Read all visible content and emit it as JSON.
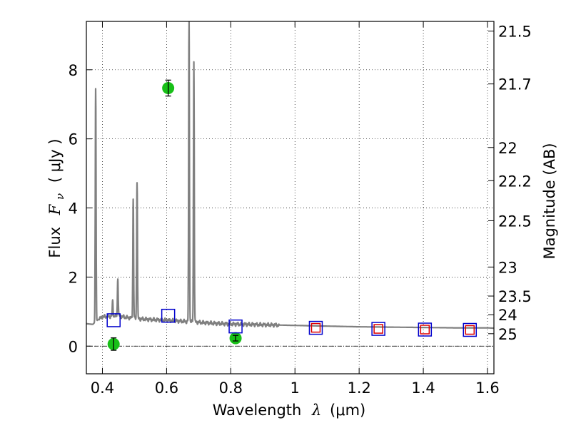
{
  "chart_data": {
    "type": "scatter",
    "title": "",
    "xlabel_text": "Wavelength",
    "xlabel_symbol": "λ",
    "xlabel_unit": "(μm)",
    "ylabel_text": "Flux",
    "ylabel_symbol": "F",
    "ylabel_subscript": "ν",
    "ylabel_unit": "( μJy )",
    "y2label": "Magnitude (AB)",
    "xlim": [
      0.35,
      1.62
    ],
    "ylim": [
      -0.8,
      9.4
    ],
    "grid": true,
    "x_ticks": [
      {
        "value": 0.4,
        "label": "0.4"
      },
      {
        "value": 0.6,
        "label": "0.6"
      },
      {
        "value": 0.8,
        "label": "0.8"
      },
      {
        "value": 1.0,
        "label": "1"
      },
      {
        "value": 1.2,
        "label": "1.2"
      },
      {
        "value": 1.4,
        "label": "1.4"
      },
      {
        "value": 1.6,
        "label": "1.6"
      }
    ],
    "y_ticks": [
      {
        "value": 0,
        "label": "0"
      },
      {
        "value": 2,
        "label": "2"
      },
      {
        "value": 4,
        "label": "4"
      },
      {
        "value": 6,
        "label": "6"
      },
      {
        "value": 8,
        "label": "8"
      }
    ],
    "mag_ticks": [
      {
        "flux": 9.12,
        "label": "21.5"
      },
      {
        "flux": 7.59,
        "label": "21.7"
      },
      {
        "flux": 5.75,
        "label": "22"
      },
      {
        "flux": 4.79,
        "label": "22.2"
      },
      {
        "flux": 3.63,
        "label": "22.5"
      },
      {
        "flux": 2.29,
        "label": "23"
      },
      {
        "flux": 1.45,
        "label": "23.5"
      },
      {
        "flux": 0.91,
        "label": "24"
      },
      {
        "flux": 0.36,
        "label": "25"
      }
    ],
    "sed_model": {
      "name": "model spectrum",
      "color": "#808080",
      "continuum": [
        [
          0.35,
          0.65
        ],
        [
          0.37,
          0.63
        ],
        [
          0.38,
          0.72
        ],
        [
          0.4,
          0.85
        ],
        [
          0.42,
          0.86
        ],
        [
          0.45,
          0.88
        ],
        [
          0.47,
          0.84
        ],
        [
          0.5,
          0.8
        ],
        [
          0.55,
          0.77
        ],
        [
          0.6,
          0.75
        ],
        [
          0.65,
          0.72
        ],
        [
          0.7,
          0.69
        ],
        [
          0.75,
          0.66
        ],
        [
          0.8,
          0.64
        ],
        [
          0.85,
          0.63
        ],
        [
          0.9,
          0.62
        ],
        [
          1.0,
          0.6
        ],
        [
          1.1,
          0.58
        ],
        [
          1.2,
          0.56
        ],
        [
          1.3,
          0.55
        ],
        [
          1.4,
          0.54
        ],
        [
          1.5,
          0.53
        ],
        [
          1.6,
          0.53
        ],
        [
          1.62,
          0.52
        ]
      ],
      "emission_lines": [
        {
          "wavelength": 0.379,
          "peak": 7.45
        },
        {
          "wavelength": 0.432,
          "peak": 1.3
        },
        {
          "wavelength": 0.448,
          "peak": 1.98
        },
        {
          "wavelength": 0.496,
          "peak": 4.25
        },
        {
          "wavelength": 0.508,
          "peak": 4.78
        },
        {
          "wavelength": 0.67,
          "peak": 9.4
        },
        {
          "wavelength": 0.685,
          "peak": 8.25
        }
      ]
    },
    "series": [
      {
        "name": "observed photometry",
        "marker": "circle",
        "color": "#18c018",
        "points": [
          {
            "x": 0.435,
            "y": 0.06,
            "err": 0.18
          },
          {
            "x": 0.605,
            "y": 7.47,
            "err": 0.23
          },
          {
            "x": 0.815,
            "y": 0.23,
            "err": 0.08
          }
        ]
      },
      {
        "name": "model photometry",
        "marker": "square",
        "color": "#0000cc",
        "points": [
          {
            "x": 0.435,
            "y": 0.75
          },
          {
            "x": 0.605,
            "y": 0.88
          },
          {
            "x": 0.815,
            "y": 0.57
          },
          {
            "x": 1.065,
            "y": 0.53
          },
          {
            "x": 1.26,
            "y": 0.5
          },
          {
            "x": 1.405,
            "y": 0.48
          },
          {
            "x": 1.545,
            "y": 0.47
          }
        ]
      },
      {
        "name": "secondary model photometry",
        "marker": "square",
        "color": "#dd0000",
        "points": [
          {
            "x": 1.065,
            "y": 0.53
          },
          {
            "x": 1.26,
            "y": 0.5
          },
          {
            "x": 1.405,
            "y": 0.48
          },
          {
            "x": 1.545,
            "y": 0.47
          }
        ]
      }
    ]
  }
}
